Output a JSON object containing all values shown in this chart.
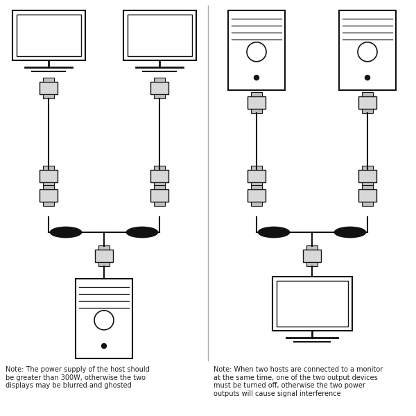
{
  "bg_color": "#ffffff",
  "line_color": "#111111",
  "note_left": "Note: The power supply of the host should\nbe greater than 300W, otherwise the two\ndisplays may be blurred and ghosted",
  "note_right": "Note: When two hosts are connected to a monitor\nat the same time, one of the two output devices\nmust be turned off, otherwise the two power\noutputs will cause signal interference",
  "note_fontsize": 7.0
}
